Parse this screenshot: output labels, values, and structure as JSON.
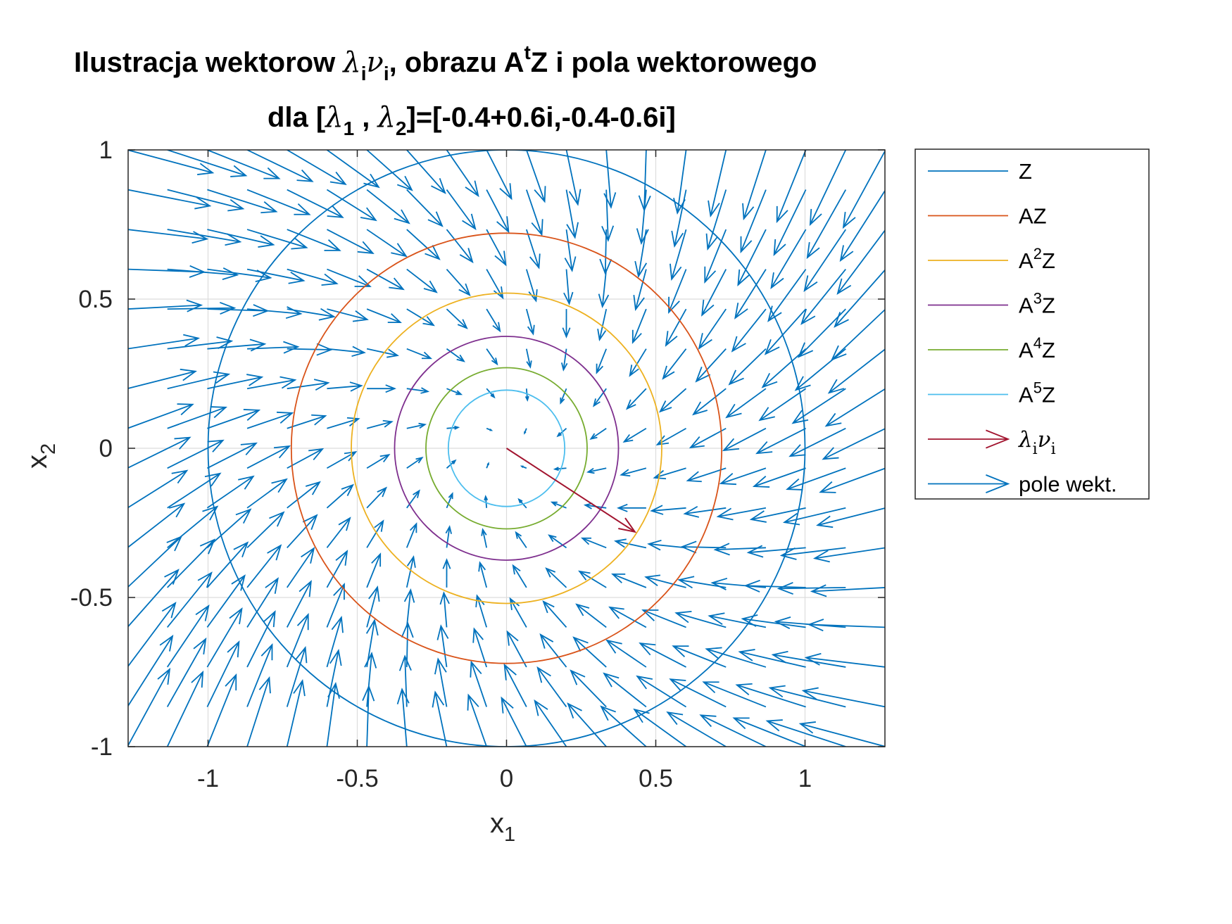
{
  "title": {
    "line1": {
      "prefix": "Ilustracja wektorow ",
      "lambda": "λ",
      "sub_i1": "i",
      "nu": "ν",
      "sub_i2": "i",
      "mid": ", obrazu A",
      "sup_t": "t",
      "suffix": "Z i pola wektorowego"
    },
    "line2": {
      "prefix": "dla [",
      "lambda1": "λ",
      "sub1": "1",
      "sep": " , ",
      "lambda2": "λ",
      "sub2": "2",
      "suffix": "]=[-0.4+0.6i,-0.4-0.6i]"
    }
  },
  "axes": {
    "xlabel": {
      "main": "x",
      "sub": "1"
    },
    "ylabel": {
      "main": "x",
      "sub": "2"
    },
    "x_ticks": [
      {
        "value": -1,
        "label": "-1"
      },
      {
        "value": -0.5,
        "label": "-0.5"
      },
      {
        "value": 0,
        "label": "0"
      },
      {
        "value": 0.5,
        "label": "0.5"
      },
      {
        "value": 1,
        "label": "1"
      }
    ],
    "y_ticks": [
      {
        "value": 1,
        "label": "1"
      },
      {
        "value": 0.5,
        "label": "0.5"
      },
      {
        "value": 0,
        "label": "0"
      },
      {
        "value": -0.5,
        "label": "-0.5"
      },
      {
        "value": -1,
        "label": "-1"
      }
    ]
  },
  "legend": {
    "placement": "outside-right",
    "entries": [
      {
        "key": "Z",
        "type": "line",
        "color": "#0072BD",
        "base": "Z",
        "sup": "",
        "tail": ""
      },
      {
        "key": "AZ",
        "type": "line",
        "color": "#D95319",
        "base": "AZ",
        "sup": "",
        "tail": ""
      },
      {
        "key": "A2Z",
        "type": "line",
        "color": "#EDB120",
        "base": "A",
        "sup": "2",
        "tail": "Z"
      },
      {
        "key": "A3Z",
        "type": "line",
        "color": "#7E2F8E",
        "base": "A",
        "sup": "3",
        "tail": "Z"
      },
      {
        "key": "A4Z",
        "type": "line",
        "color": "#77AC30",
        "base": "A",
        "sup": "4",
        "tail": "Z"
      },
      {
        "key": "A5Z",
        "type": "line",
        "color": "#4DBEEE",
        "base": "A",
        "sup": "5",
        "tail": "Z"
      },
      {
        "key": "lambda-nu",
        "type": "arrow",
        "color": "#A2142F",
        "greek1": "λ",
        "sub1": "i",
        "greek2": "ν",
        "sub2": "i"
      },
      {
        "key": "pole",
        "type": "arrow",
        "color": "#0072BD",
        "base": "pole wekt.",
        "sup": "",
        "tail": ""
      }
    ]
  },
  "chart_data": {
    "type": "scatter",
    "xlim": [
      -1.27,
      1.27
    ],
    "ylim": [
      -1,
      1
    ],
    "grid": true,
    "legend_placement": "outside-right",
    "eigenvalues": [
      {
        "re": -0.4,
        "im": 0.6
      },
      {
        "re": -0.4,
        "im": -0.6
      }
    ],
    "circles": [
      {
        "name": "Z",
        "radius": 1.0,
        "color": "#0072BD"
      },
      {
        "name": "AZ",
        "radius": 0.721,
        "color": "#D95319"
      },
      {
        "name": "A2Z",
        "radius": 0.52,
        "color": "#EDB120"
      },
      {
        "name": "A3Z",
        "radius": 0.375,
        "color": "#7E2F8E"
      },
      {
        "name": "A4Z",
        "radius": 0.27,
        "color": "#77AC30"
      },
      {
        "name": "A5Z",
        "radius": 0.195,
        "color": "#4DBEEE"
      }
    ],
    "eigen_vector": {
      "x0": 0,
      "y0": 0,
      "x1": 0.43,
      "y1": -0.28,
      "color": "#A2142F"
    },
    "vector_field": {
      "matrix": [
        [
          -0.4,
          0.6
        ],
        [
          -0.6,
          -0.4
        ]
      ],
      "x_range": [
        -1.27,
        1.27
      ],
      "y_range": [
        -1,
        1
      ],
      "nx": 20,
      "ny": 16,
      "scale": 0.06,
      "color": "#0072BD"
    }
  }
}
